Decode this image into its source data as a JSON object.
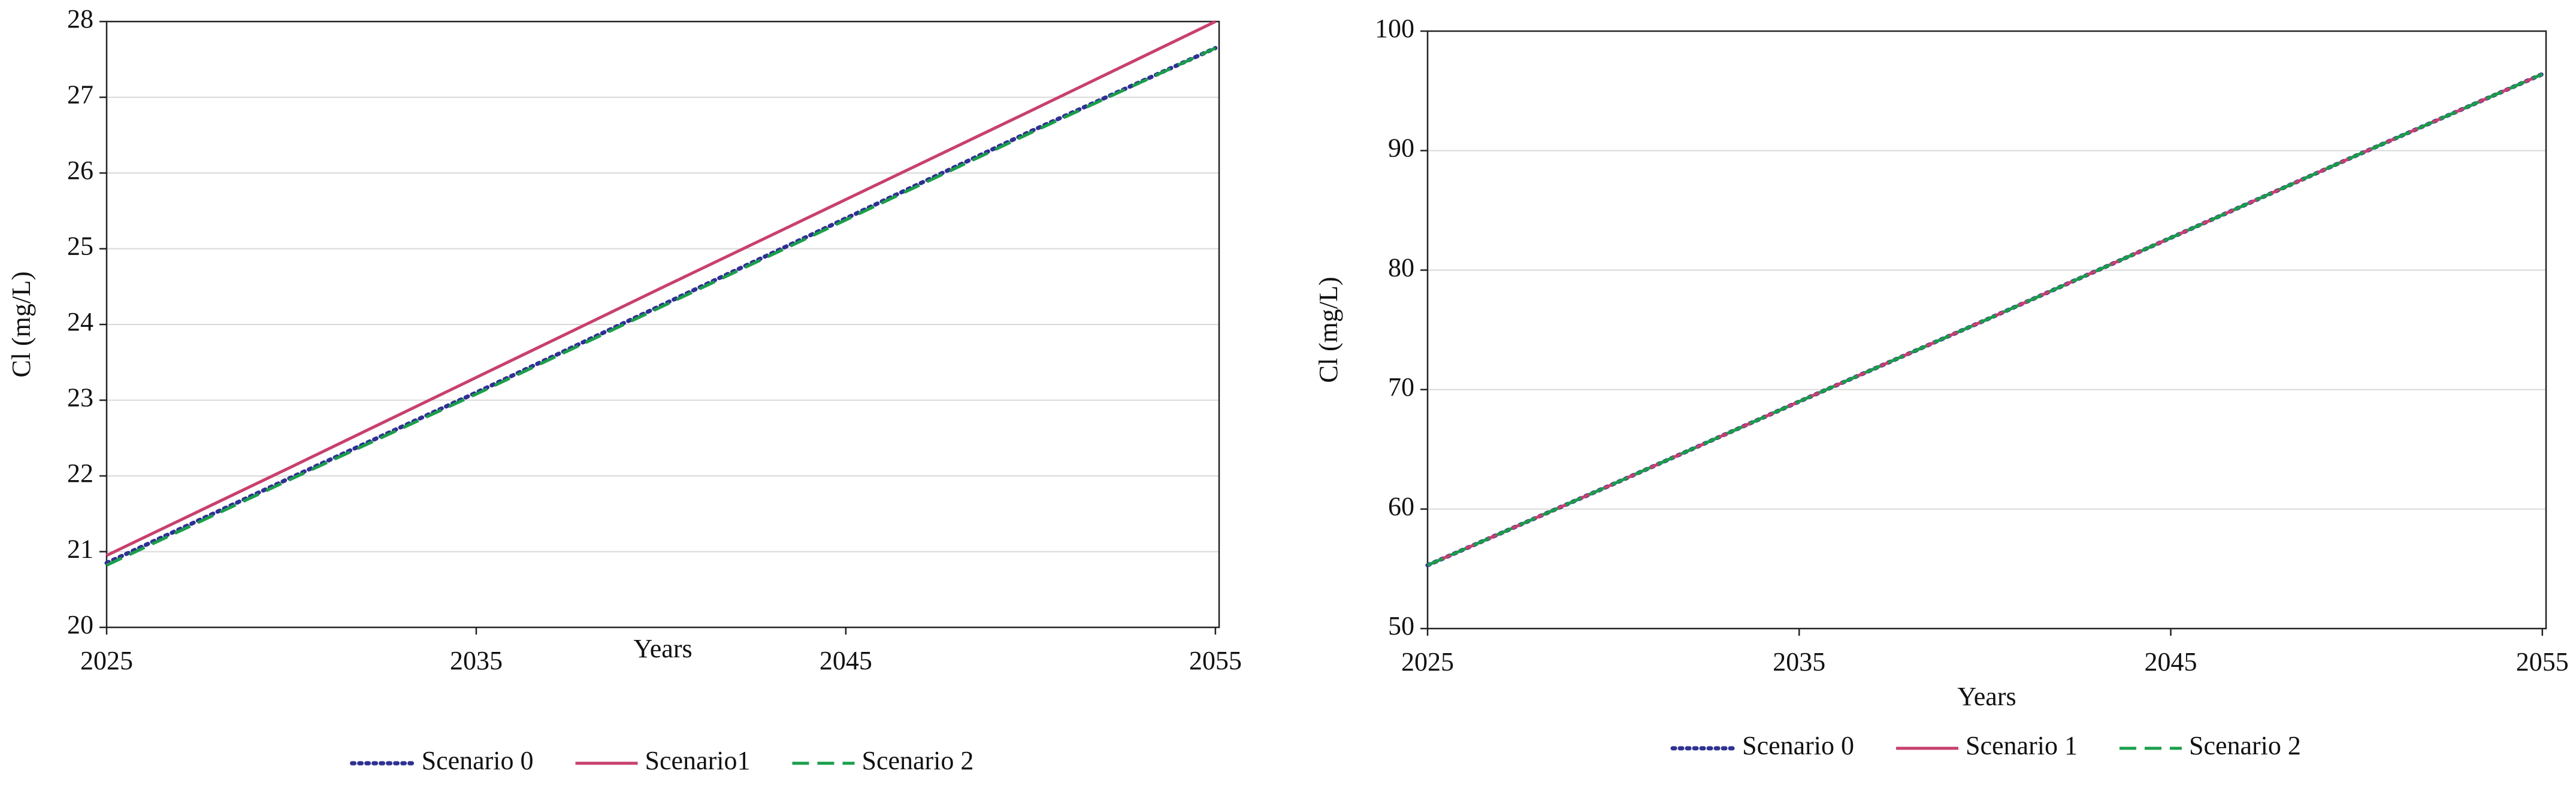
{
  "chart_data": [
    {
      "type": "line",
      "x_label": "Years",
      "y_label": "Cl (mg/L)",
      "x": [
        2025,
        2030,
        2035,
        2040,
        2045,
        2050,
        2055
      ],
      "xlim": [
        2025,
        2055.1
      ],
      "xticks": [
        2025,
        2035,
        2045,
        2055
      ],
      "ylim": [
        20,
        28
      ],
      "yticks": [
        20,
        21,
        22,
        23,
        24,
        25,
        26,
        27,
        28
      ],
      "grid": true,
      "series": [
        {
          "name": "Scenario 0",
          "color": "#2e3192",
          "dash": "dotted",
          "values": [
            20.85,
            21.98,
            23.1,
            24.25,
            25.4,
            26.55,
            27.65
          ]
        },
        {
          "name": "Scenario1",
          "color": "#c8406e",
          "dash": "solid",
          "values": [
            20.95,
            22.12,
            23.3,
            24.48,
            25.65,
            26.82,
            28.0
          ]
        },
        {
          "name": "Scenario 2",
          "color": "#1a9e4a",
          "dash": "dashed",
          "values": [
            20.82,
            21.96,
            23.08,
            24.23,
            25.38,
            26.53,
            27.65
          ]
        }
      ]
    },
    {
      "type": "line",
      "x_label": "Years",
      "y_label": "Cl (mg/L)",
      "x": [
        2025,
        2030,
        2035,
        2040,
        2045,
        2050,
        2055
      ],
      "xlim": [
        2025,
        2055.1
      ],
      "xticks": [
        2025,
        2035,
        2045,
        2055
      ],
      "ylim": [
        50,
        100
      ],
      "yticks": [
        50,
        60,
        70,
        80,
        90,
        100
      ],
      "grid": true,
      "series": [
        {
          "name": "Scenario 0",
          "color": "#2e3192",
          "dash": "dotted",
          "values": [
            55.3,
            62.1,
            69.0,
            75.8,
            82.7,
            89.6,
            96.4
          ]
        },
        {
          "name": "Scenario 1",
          "color": "#c8406e",
          "dash": "solid",
          "values": [
            55.3,
            62.1,
            69.0,
            75.8,
            82.7,
            89.6,
            96.4
          ]
        },
        {
          "name": "Scenario 2",
          "color": "#1a9e4a",
          "dash": "dashed",
          "values": [
            55.3,
            62.1,
            69.0,
            75.8,
            82.7,
            89.6,
            96.4
          ]
        }
      ]
    }
  ]
}
